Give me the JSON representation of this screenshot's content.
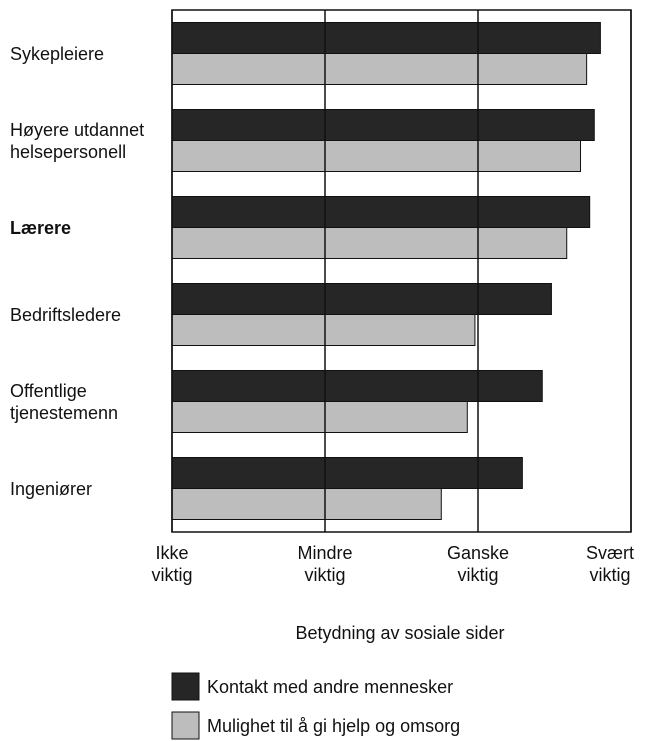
{
  "chart_data": {
    "type": "hbar",
    "xlabel": "Betydning av sosiale sider",
    "categories": [
      "Sykepleiere",
      "Høyere utdannet helsepersonell",
      "Lærere",
      "Bedriftsledere",
      "Offentlige tjenestemenn",
      "Ingeniører"
    ],
    "bold_category_index": 2,
    "series": [
      {
        "name": "Kontakt med andre mennesker",
        "color": "#262626",
        "values": [
          3.8,
          3.76,
          3.73,
          3.48,
          3.42,
          3.29
        ]
      },
      {
        "name": "Mulighet til å gi hjelp og omsorg",
        "color": "#bdbdbd",
        "values": [
          3.71,
          3.67,
          3.58,
          2.98,
          2.93,
          2.76
        ]
      }
    ],
    "xlim": [
      1,
      4
    ],
    "xticks": [
      {
        "value": 1,
        "label": "Ikke viktig"
      },
      {
        "value": 2,
        "label": "Mindre viktig"
      },
      {
        "value": 3,
        "label": "Ganske viktig"
      },
      {
        "value": 4,
        "label": "Svært viktig"
      }
    ],
    "grid": true
  }
}
